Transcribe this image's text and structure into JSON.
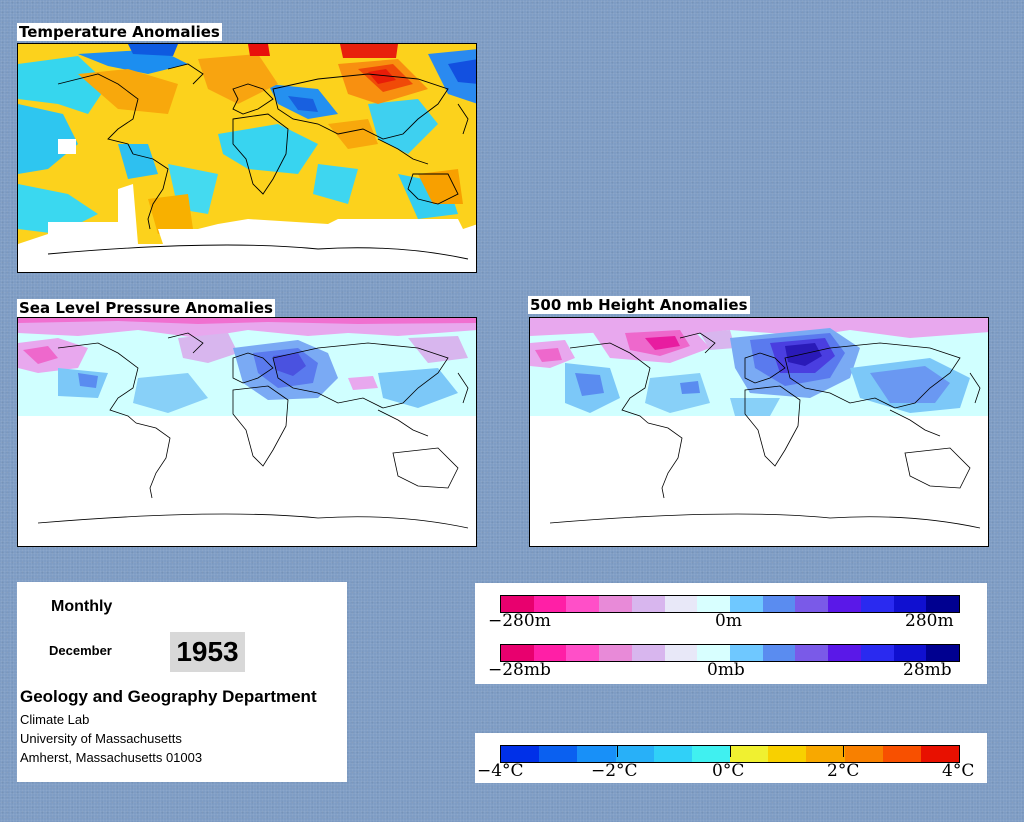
{
  "panels": {
    "temperature": {
      "title": "Temperature Anomalies"
    },
    "slp": {
      "title": "Sea Level Pressure Anomalies"
    },
    "height": {
      "title": "500 mb Height Anomalies"
    }
  },
  "info": {
    "period": "Monthly",
    "month": "December",
    "year": "1953",
    "department": "Geology and Geography Department",
    "lab": "Climate Lab",
    "university": "University of Massachusetts",
    "address": "Amherst, Massachusetts 01003"
  },
  "legend_height": {
    "min_label": "−280m",
    "mid_label": "0m",
    "max_label": "280m",
    "colors": [
      "#e8006e",
      "#ff1fa6",
      "#ff4fc8",
      "#e88ad8",
      "#d8b6ee",
      "#e8e8f8",
      "#d8ffff",
      "#6fc8ff",
      "#5a8cf0",
      "#7a5ae8",
      "#5a18e8",
      "#2a2af0",
      "#1010d0",
      "#000090"
    ]
  },
  "legend_slp": {
    "min_label": "−28mb",
    "mid_label": "0mb",
    "max_label": "28mb",
    "colors": [
      "#e8006e",
      "#ff1fa6",
      "#ff4fc8",
      "#e88ad8",
      "#d8b6ee",
      "#e8e8f8",
      "#d8ffff",
      "#6fc8ff",
      "#5a8cf0",
      "#7a5ae8",
      "#5a18e8",
      "#2a2af0",
      "#1010d0",
      "#000090"
    ]
  },
  "legend_temp": {
    "labels": [
      "−4°C",
      "−2°C",
      "0°C",
      "2°C",
      "4°C"
    ],
    "colors": [
      "#0030e8",
      "#0a60f0",
      "#1890f8",
      "#28b0f8",
      "#30d0f8",
      "#40f0f0",
      "#f0f030",
      "#f8d000",
      "#f8a800",
      "#f88000",
      "#f85000",
      "#e81000"
    ]
  }
}
